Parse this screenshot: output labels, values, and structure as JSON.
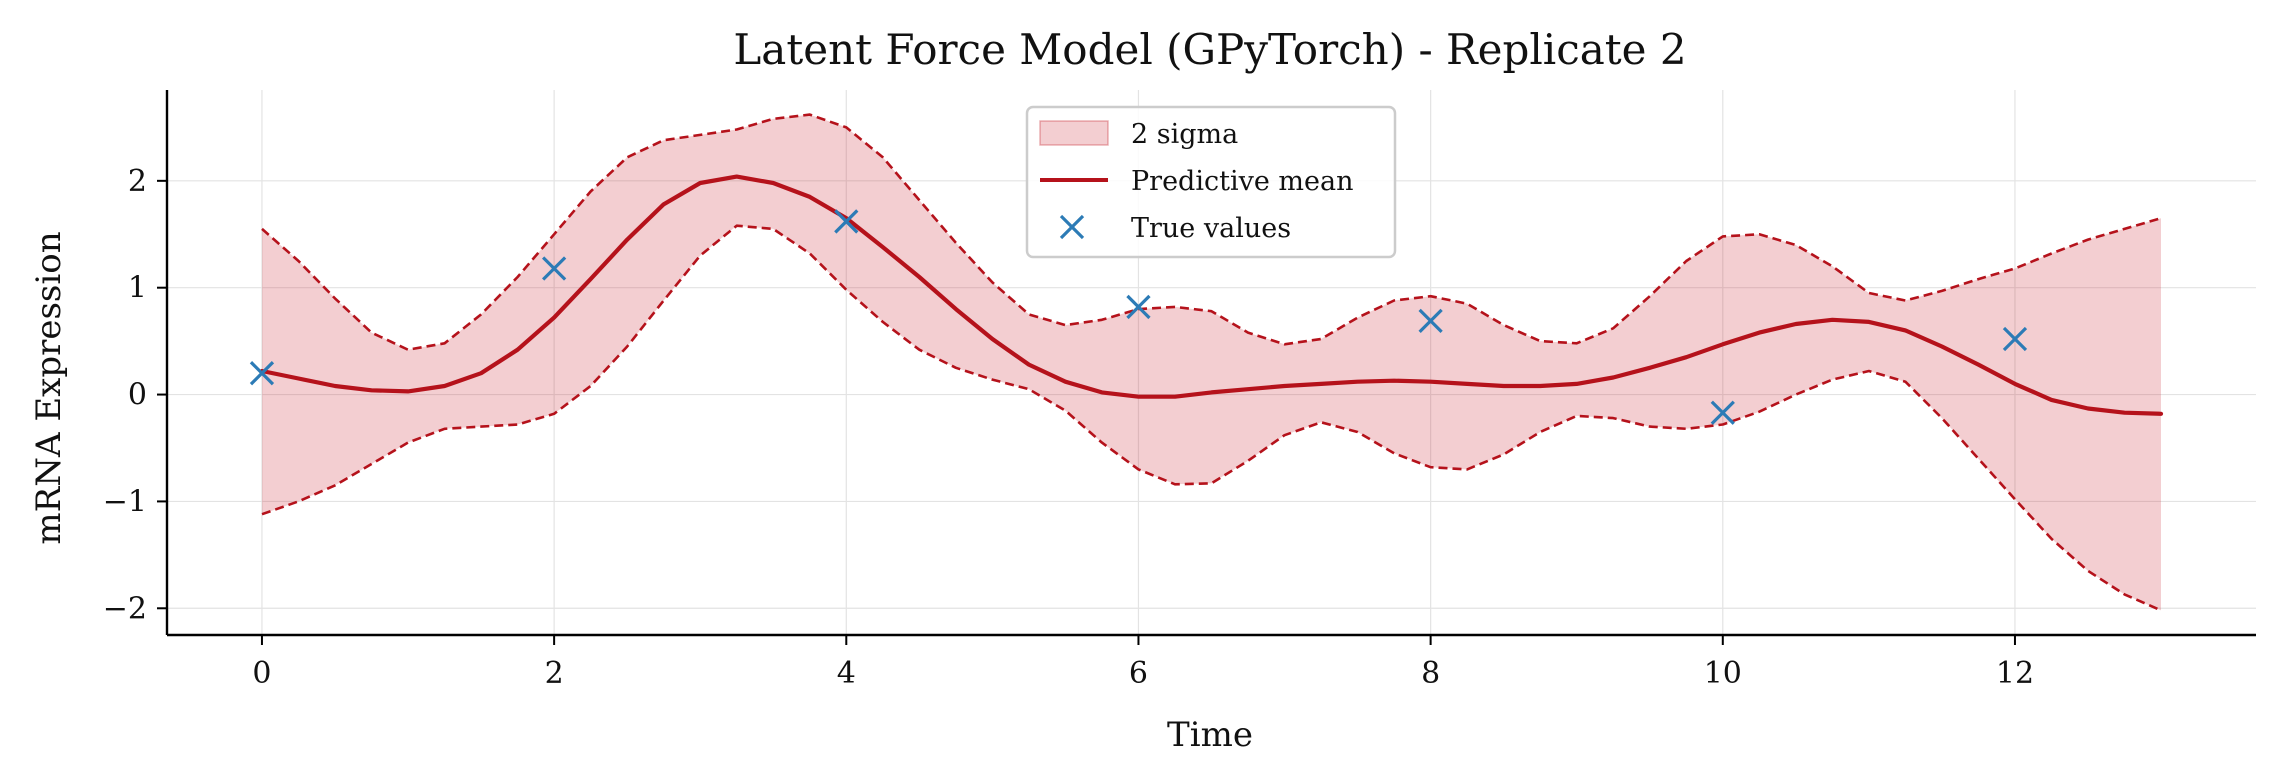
{
  "chart_data": {
    "type": "line",
    "title": "Latent Force Model (GPyTorch) - Replicate 2",
    "xlabel": "Time",
    "ylabel": "mRNA Expression",
    "xlim": [
      -0.65,
      13.65
    ],
    "ylim": [
      -2.25,
      2.85
    ],
    "xticks": [
      0,
      2,
      4,
      6,
      8,
      10,
      12
    ],
    "yticks": [
      -2,
      -1,
      0,
      1,
      2
    ],
    "ytick_labels": [
      "−2",
      "−1",
      "0",
      "1",
      "2"
    ],
    "grid": true,
    "legend_position": "top-center",
    "colors": {
      "band_fill": "#c7222e",
      "mean": "#b5121b",
      "markers": "#2c7bb6",
      "grid": "#e3e3e3",
      "axis": "#000000"
    },
    "series": [
      {
        "name": "2 sigma",
        "kind": "band",
        "x": [
          0,
          0.25,
          0.5,
          0.75,
          1,
          1.25,
          1.5,
          1.75,
          2,
          2.25,
          2.5,
          2.75,
          3,
          3.25,
          3.5,
          3.75,
          4,
          4.25,
          4.5,
          4.75,
          5,
          5.25,
          5.5,
          5.75,
          6,
          6.25,
          6.5,
          6.75,
          7,
          7.25,
          7.5,
          7.75,
          8,
          8.25,
          8.5,
          8.75,
          9,
          9.25,
          9.5,
          9.75,
          10,
          10.25,
          10.5,
          10.75,
          11,
          11.25,
          11.5,
          11.75,
          12,
          12.25,
          12.5,
          12.75,
          13
        ],
        "upper": [
          1.55,
          1.25,
          0.9,
          0.58,
          0.42,
          0.48,
          0.75,
          1.1,
          1.5,
          1.9,
          2.22,
          2.38,
          2.43,
          2.48,
          2.58,
          2.62,
          2.5,
          2.22,
          1.82,
          1.42,
          1.05,
          0.75,
          0.65,
          0.7,
          0.8,
          0.82,
          0.78,
          0.58,
          0.47,
          0.52,
          0.72,
          0.88,
          0.92,
          0.85,
          0.65,
          0.5,
          0.48,
          0.62,
          0.92,
          1.25,
          1.48,
          1.5,
          1.4,
          1.2,
          0.95,
          0.88,
          0.97,
          1.08,
          1.18,
          1.32,
          1.45,
          1.55,
          1.65
        ],
        "lower": [
          -1.12,
          -1.0,
          -0.85,
          -0.65,
          -0.45,
          -0.32,
          -0.3,
          -0.28,
          -0.18,
          0.08,
          0.45,
          0.88,
          1.3,
          1.58,
          1.55,
          1.32,
          0.98,
          0.68,
          0.42,
          0.25,
          0.14,
          0.05,
          -0.15,
          -0.45,
          -0.7,
          -0.84,
          -0.83,
          -0.62,
          -0.38,
          -0.26,
          -0.35,
          -0.55,
          -0.68,
          -0.7,
          -0.56,
          -0.35,
          -0.2,
          -0.22,
          -0.3,
          -0.32,
          -0.28,
          -0.16,
          0.0,
          0.14,
          0.22,
          0.12,
          -0.22,
          -0.6,
          -0.98,
          -1.35,
          -1.65,
          -1.87,
          -2.02
        ]
      },
      {
        "name": "Predictive mean",
        "kind": "line",
        "x": [
          0,
          0.25,
          0.5,
          0.75,
          1,
          1.25,
          1.5,
          1.75,
          2,
          2.25,
          2.5,
          2.75,
          3,
          3.25,
          3.5,
          3.75,
          4,
          4.25,
          4.5,
          4.75,
          5,
          5.25,
          5.5,
          5.75,
          6,
          6.25,
          6.5,
          6.75,
          7,
          7.25,
          7.5,
          7.75,
          8,
          8.25,
          8.5,
          8.75,
          9,
          9.25,
          9.5,
          9.75,
          10,
          10.25,
          10.5,
          10.75,
          11,
          11.25,
          11.5,
          11.75,
          12,
          12.25,
          12.5,
          12.75,
          13
        ],
        "y": [
          0.22,
          0.15,
          0.08,
          0.04,
          0.03,
          0.08,
          0.2,
          0.42,
          0.72,
          1.08,
          1.45,
          1.78,
          1.98,
          2.04,
          1.98,
          1.85,
          1.65,
          1.38,
          1.1,
          0.8,
          0.52,
          0.28,
          0.12,
          0.02,
          -0.02,
          -0.02,
          0.02,
          0.05,
          0.08,
          0.1,
          0.12,
          0.13,
          0.12,
          0.1,
          0.08,
          0.08,
          0.1,
          0.16,
          0.25,
          0.35,
          0.47,
          0.58,
          0.66,
          0.7,
          0.68,
          0.6,
          0.45,
          0.28,
          0.1,
          -0.05,
          -0.13,
          -0.17,
          -0.18
        ]
      },
      {
        "name": "True values",
        "kind": "scatter",
        "x": [
          0,
          2,
          4,
          6,
          8,
          10,
          12
        ],
        "y": [
          0.2,
          1.18,
          1.62,
          0.82,
          0.69,
          -0.17,
          0.52
        ]
      }
    ]
  }
}
